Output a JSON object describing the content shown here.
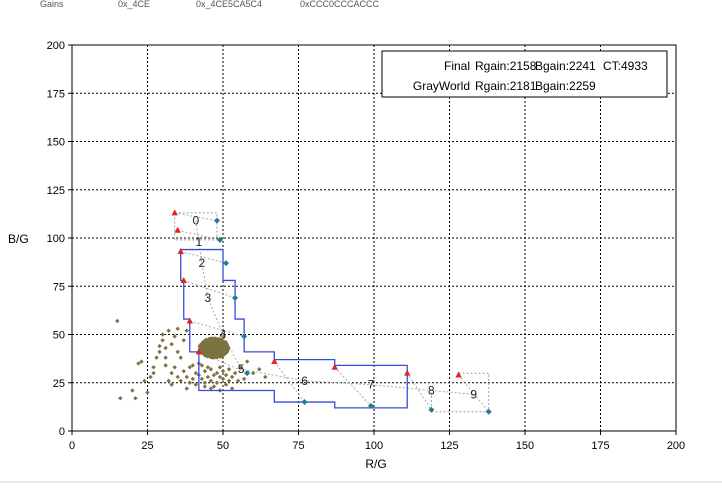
{
  "header_strip": {
    "items": [
      "Gains",
      "0x_4CE",
      "0x_4CE5CA5C4",
      "0xCCC0CCCACCC"
    ]
  },
  "chart_data": {
    "type": "scatter",
    "xlabel": "R/G",
    "ylabel": "B/G",
    "xlim": [
      0,
      200
    ],
    "ylim": [
      0,
      200
    ],
    "xticks": [
      0,
      25,
      50,
      75,
      100,
      125,
      150,
      175,
      200
    ],
    "yticks": [
      0,
      25,
      50,
      75,
      100,
      125,
      150,
      175,
      200
    ],
    "grid": true,
    "legend_position": "top-right",
    "annotations": [
      {
        "label": "Final",
        "rgain": "Rgain:2158",
        "bgain": "Bgain:2241",
        "ct": "CT:4933"
      },
      {
        "label": "GrayWorld",
        "rgain": "Rgain:2181",
        "bgain": "Bgain:2259",
        "ct": ""
      }
    ],
    "red_markers": [
      {
        "x": 34,
        "y": 113
      },
      {
        "x": 35,
        "y": 104
      },
      {
        "x": 36,
        "y": 93
      },
      {
        "x": 37,
        "y": 78
      },
      {
        "x": 39,
        "y": 57
      },
      {
        "x": 42,
        "y": 41
      },
      {
        "x": 67,
        "y": 36
      },
      {
        "x": 87,
        "y": 33
      },
      {
        "x": 111,
        "y": 30
      },
      {
        "x": 128,
        "y": 29
      }
    ],
    "teal_markers": [
      {
        "x": 48,
        "y": 109
      },
      {
        "x": 49,
        "y": 99
      },
      {
        "x": 51,
        "y": 87
      },
      {
        "x": 54,
        "y": 69
      },
      {
        "x": 57,
        "y": 49
      },
      {
        "x": 58,
        "y": 30
      },
      {
        "x": 77,
        "y": 15
      },
      {
        "x": 99,
        "y": 13
      },
      {
        "x": 119,
        "y": 11
      },
      {
        "x": 138,
        "y": 10
      }
    ],
    "segment_labels": [
      {
        "text": "0",
        "x": 41,
        "y": 109
      },
      {
        "text": "1",
        "x": 42,
        "y": 98
      },
      {
        "text": "2",
        "x": 43,
        "y": 87
      },
      {
        "text": "3",
        "x": 45,
        "y": 69
      },
      {
        "text": "4",
        "x": 50,
        "y": 50
      },
      {
        "text": "5",
        "x": 56,
        "y": 32
      },
      {
        "text": "6",
        "x": 77,
        "y": 26
      },
      {
        "text": "7",
        "x": 99,
        "y": 24
      },
      {
        "text": "8",
        "x": 119,
        "y": 21
      },
      {
        "text": "9",
        "x": 133,
        "y": 19
      }
    ],
    "boundary_polyline": [
      [
        36,
        94
      ],
      [
        50,
        94
      ],
      [
        50,
        78
      ],
      [
        54,
        78
      ],
      [
        54,
        58
      ],
      [
        57,
        58
      ],
      [
        57,
        41
      ],
      [
        67,
        41
      ],
      [
        67,
        37
      ],
      [
        87,
        37
      ],
      [
        87,
        34
      ],
      [
        111,
        34
      ],
      [
        111,
        12
      ],
      [
        87,
        12
      ],
      [
        87,
        15
      ],
      [
        67,
        15
      ],
      [
        67,
        21
      ],
      [
        42,
        21
      ],
      [
        42,
        41
      ],
      [
        39,
        41
      ],
      [
        39,
        58
      ],
      [
        37,
        58
      ],
      [
        37,
        78
      ],
      [
        36,
        78
      ],
      [
        36,
        94
      ]
    ],
    "dashed_box": [
      [
        34,
        113
      ],
      [
        48,
        113
      ],
      [
        48,
        99
      ],
      [
        34,
        99
      ],
      [
        34,
        113
      ]
    ],
    "dashed_box2": [
      [
        128,
        30
      ],
      [
        138,
        30
      ],
      [
        138,
        10
      ],
      [
        119,
        10
      ],
      [
        119,
        20
      ]
    ],
    "cluster": {
      "x_center": 47,
      "y_center": 43,
      "x_spread": 4,
      "y_spread": 5
    },
    "scatter_points": [
      [
        15,
        57
      ],
      [
        16,
        17
      ],
      [
        20,
        21
      ],
      [
        21,
        17
      ],
      [
        22,
        35
      ],
      [
        23,
        36
      ],
      [
        25,
        20
      ],
      [
        26,
        28
      ],
      [
        27,
        30
      ],
      [
        29,
        41
      ],
      [
        29,
        44
      ],
      [
        30,
        47
      ],
      [
        31,
        38
      ],
      [
        31,
        34
      ],
      [
        32,
        26
      ],
      [
        33,
        24
      ],
      [
        33,
        30
      ],
      [
        34,
        33
      ],
      [
        35,
        28
      ],
      [
        35,
        41
      ],
      [
        36,
        38
      ],
      [
        36,
        26
      ],
      [
        37,
        31
      ],
      [
        38,
        22
      ],
      [
        38,
        28
      ],
      [
        39,
        25
      ],
      [
        39,
        33
      ],
      [
        40,
        34
      ],
      [
        40,
        27
      ],
      [
        41,
        24
      ],
      [
        41,
        30
      ],
      [
        42,
        35
      ],
      [
        42,
        29
      ],
      [
        43,
        27
      ],
      [
        43,
        34
      ],
      [
        44,
        31
      ],
      [
        44,
        25
      ],
      [
        45,
        28
      ],
      [
        45,
        33
      ],
      [
        46,
        26
      ],
      [
        46,
        32
      ],
      [
        47,
        29
      ],
      [
        47,
        23
      ],
      [
        48,
        30
      ],
      [
        48,
        25
      ],
      [
        49,
        33
      ],
      [
        49,
        28
      ],
      [
        50,
        27
      ],
      [
        50,
        31
      ],
      [
        51,
        24
      ],
      [
        51,
        29
      ],
      [
        52,
        32
      ],
      [
        52,
        26
      ],
      [
        53,
        28
      ],
      [
        54,
        30
      ],
      [
        55,
        26
      ],
      [
        56,
        33
      ],
      [
        57,
        27
      ],
      [
        58,
        36
      ],
      [
        60,
        30
      ],
      [
        62,
        32
      ],
      [
        64,
        28
      ],
      [
        30,
        50
      ],
      [
        32,
        52
      ],
      [
        34,
        49
      ],
      [
        33,
        45
      ],
      [
        31,
        43
      ],
      [
        37,
        47
      ],
      [
        38,
        52
      ],
      [
        35,
        53
      ],
      [
        44,
        23
      ],
      [
        46,
        22
      ],
      [
        49,
        21
      ],
      [
        53,
        22
      ],
      [
        28,
        38
      ],
      [
        27,
        33
      ],
      [
        24,
        26
      ]
    ]
  }
}
